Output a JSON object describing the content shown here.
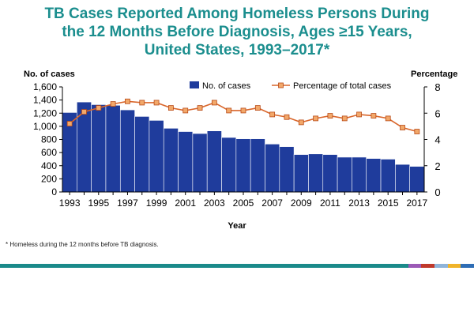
{
  "title_lines": [
    "TB Cases Reported Among Homeless Persons During",
    "the 12 Months Before Diagnosis, Ages ≥15 Years,",
    "United States, 1993–2017*"
  ],
  "footnote": "*   Homeless during the 12 months before TB diagnosis.",
  "colors": {
    "title": "#1b8e8e",
    "bar": "#1f3c9c",
    "line": "#d9662b",
    "marker_fill": "#f2a86a",
    "marker_edge": "#b84a17",
    "band": [
      "#1a8a8a",
      "#1a8a8a",
      "#1a8a8a",
      "#1a8a8a",
      "#9b59b6",
      "#c0392b",
      "#8fb4d9",
      "#f0b429",
      "#2e6db5"
    ]
  },
  "chart_data": {
    "type": "bar",
    "xlabel": "Year",
    "y_left": {
      "label": "No. of cases",
      "lim": [
        0,
        1600
      ],
      "ticks": [
        0,
        200,
        400,
        600,
        800,
        1000,
        1200,
        1400,
        1600
      ],
      "tick_labels": [
        "0",
        "200",
        "400",
        "600",
        "800",
        "1,000",
        "1,200",
        "1,400",
        "1,600"
      ]
    },
    "y_right": {
      "label": "Percentage",
      "lim": [
        0,
        8
      ],
      "ticks": [
        0,
        2,
        4,
        6,
        8
      ],
      "tick_labels": [
        "0",
        "2",
        "4",
        "6",
        "8"
      ]
    },
    "categories": [
      1993,
      1994,
      1995,
      1996,
      1997,
      1998,
      1999,
      2000,
      2001,
      2002,
      2003,
      2004,
      2005,
      2006,
      2007,
      2008,
      2009,
      2010,
      2011,
      2012,
      2013,
      2014,
      2015,
      2016,
      2017
    ],
    "x_tick_labels": [
      "1993",
      "1995",
      "1997",
      "1999",
      "2001",
      "2003",
      "2005",
      "2007",
      "2009",
      "2011",
      "2013",
      "2015",
      "2017"
    ],
    "series": [
      {
        "name": "No. of cases",
        "type": "bar",
        "axis": "left",
        "values": [
          1210,
          1370,
          1330,
          1320,
          1250,
          1150,
          1090,
          970,
          920,
          890,
          930,
          830,
          810,
          810,
          730,
          690,
          570,
          580,
          570,
          530,
          530,
          510,
          500,
          420,
          390
        ]
      },
      {
        "name": "Percentage of total cases",
        "type": "line",
        "axis": "right",
        "values": [
          5.2,
          6.1,
          6.4,
          6.7,
          6.9,
          6.8,
          6.8,
          6.4,
          6.2,
          6.4,
          6.8,
          6.2,
          6.2,
          6.4,
          5.9,
          5.7,
          5.3,
          5.6,
          5.8,
          5.6,
          5.9,
          5.8,
          5.6,
          4.9,
          4.6
        ]
      }
    ]
  }
}
